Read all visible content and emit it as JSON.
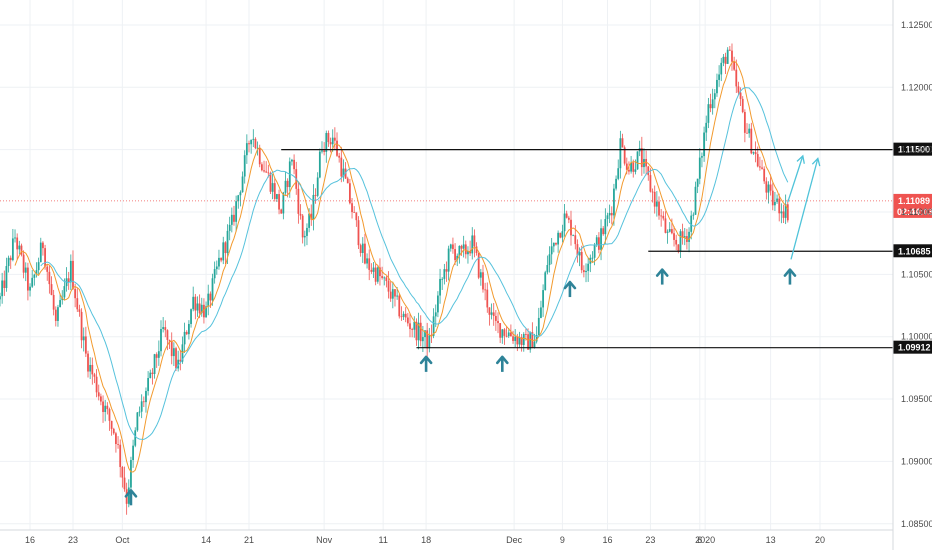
{
  "chart_data": {
    "type": "candlestick",
    "title": "",
    "xlabel": "",
    "ylabel": "",
    "ylim": [
      1.0845,
      1.127
    ],
    "y_ticks": [
      {
        "value": 1.085,
        "label": "1.08500"
      },
      {
        "value": 1.09,
        "label": "1.09000"
      },
      {
        "value": 1.095,
        "label": "1.09500"
      },
      {
        "value": 1.1,
        "label": "1.10000"
      },
      {
        "value": 1.105,
        "label": "1.10500"
      },
      {
        "value": 1.11,
        "label": "1.11000"
      },
      {
        "value": 1.115,
        "label": "1.11500"
      },
      {
        "value": 1.12,
        "label": "1.12000"
      },
      {
        "value": 1.125,
        "label": "1.12500"
      }
    ],
    "x_ticks": [
      {
        "label": "16",
        "index": 28
      },
      {
        "label": "23",
        "index": 68
      },
      {
        "label": "Oct",
        "index": 114
      },
      {
        "label": "14",
        "index": 192
      },
      {
        "label": "21",
        "index": 232
      },
      {
        "label": "Nov",
        "index": 302
      },
      {
        "label": "11",
        "index": 357
      },
      {
        "label": "18",
        "index": 397
      },
      {
        "label": "Dec",
        "index": 479
      },
      {
        "label": "9",
        "index": 524
      },
      {
        "label": "16",
        "index": 566
      },
      {
        "label": "23",
        "index": 606
      },
      {
        "label": "2020",
        "index": 657
      },
      {
        "label": "6",
        "index": 652
      },
      {
        "label": "13",
        "index": 718
      },
      {
        "label": "20",
        "index": 764
      }
    ],
    "horizontal_levels": [
      {
        "name": "resistance",
        "value": 1.115,
        "label": "1.11500",
        "x_start": 262
      },
      {
        "name": "support-mid",
        "value": 1.10685,
        "label": "1.10685",
        "x_start": 604
      },
      {
        "name": "support-low",
        "value": 1.09912,
        "label": "1.09912",
        "x_start": 388
      }
    ],
    "current_price": {
      "value": 1.11089,
      "label": "1.11089",
      "countdown": "02:44:03"
    },
    "moving_averages": [
      {
        "color": "#f29a2e",
        "period": 8
      },
      {
        "color": "#56c2dc",
        "period": 20
      }
    ],
    "path": [
      [
        0,
        1.103
      ],
      [
        14,
        1.108
      ],
      [
        28,
        1.1035
      ],
      [
        40,
        1.1075
      ],
      [
        52,
        1.101
      ],
      [
        66,
        1.1055
      ],
      [
        80,
        1.0985
      ],
      [
        94,
        1.095
      ],
      [
        108,
        1.092
      ],
      [
        118,
        1.087
      ],
      [
        128,
        1.0935
      ],
      [
        140,
        1.0965
      ],
      [
        152,
        1.1005
      ],
      [
        166,
        1.0975
      ],
      [
        180,
        1.103
      ],
      [
        192,
        1.102
      ],
      [
        204,
        1.106
      ],
      [
        216,
        1.109
      ],
      [
        226,
        1.113
      ],
      [
        234,
        1.1165
      ],
      [
        244,
        1.114
      ],
      [
        254,
        1.112
      ],
      [
        262,
        1.11
      ],
      [
        272,
        1.1145
      ],
      [
        282,
        1.108
      ],
      [
        290,
        1.1095
      ],
      [
        300,
        1.1155
      ],
      [
        310,
        1.116
      ],
      [
        320,
        1.113
      ],
      [
        330,
        1.1095
      ],
      [
        340,
        1.106
      ],
      [
        352,
        1.105
      ],
      [
        364,
        1.1035
      ],
      [
        376,
        1.1015
      ],
      [
        388,
        1.1005
      ],
      [
        400,
        1.0995
      ],
      [
        410,
        1.104
      ],
      [
        420,
        1.107
      ],
      [
        430,
        1.1065
      ],
      [
        440,
        1.1075
      ],
      [
        450,
        1.104
      ],
      [
        460,
        1.101
      ],
      [
        470,
        1.1005
      ],
      [
        480,
        1.1
      ],
      [
        490,
        1.0995
      ],
      [
        500,
        1.1
      ],
      [
        510,
        1.106
      ],
      [
        518,
        1.108
      ],
      [
        526,
        1.1095
      ],
      [
        534,
        1.1085
      ],
      [
        542,
        1.1055
      ],
      [
        550,
        1.1065
      ],
      [
        560,
        1.108
      ],
      [
        570,
        1.1105
      ],
      [
        578,
        1.1155
      ],
      [
        586,
        1.1135
      ],
      [
        596,
        1.1145
      ],
      [
        606,
        1.112
      ],
      [
        614,
        1.11
      ],
      [
        622,
        1.108
      ],
      [
        632,
        1.1075
      ],
      [
        642,
        1.1085
      ],
      [
        650,
        1.1125
      ],
      [
        660,
        1.1185
      ],
      [
        670,
        1.121
      ],
      [
        678,
        1.123
      ],
      [
        686,
        1.12
      ],
      [
        694,
        1.117
      ],
      [
        702,
        1.115
      ],
      [
        710,
        1.113
      ],
      [
        718,
        1.111
      ],
      [
        726,
        1.1105
      ],
      [
        734,
        1.11
      ]
    ],
    "annotations": [
      {
        "type": "up-arrow",
        "index": 122,
        "value": 1.0868
      },
      {
        "type": "up-arrow",
        "index": 397,
        "value": 1.0975
      },
      {
        "type": "up-arrow",
        "index": 468,
        "value": 1.0975
      },
      {
        "type": "up-arrow",
        "index": 531,
        "value": 1.1035
      },
      {
        "type": "up-arrow",
        "index": 617,
        "value": 1.1045
      },
      {
        "type": "up-arrow",
        "index": 736,
        "value": 1.1045
      },
      {
        "type": "projection",
        "from": [
          734,
          1.1108
        ],
        "to": [
          748,
          1.1145
        ]
      },
      {
        "type": "projection",
        "from": [
          737,
          1.1062
        ],
        "to": [
          762,
          1.1143
        ]
      }
    ]
  },
  "colors": {
    "up": "#26a69a",
    "down": "#ef5350",
    "grid": "#eef1f4",
    "axis_text": "#4a4a4a",
    "arrow": "#2e8398",
    "current_badge": "#ef5350"
  }
}
